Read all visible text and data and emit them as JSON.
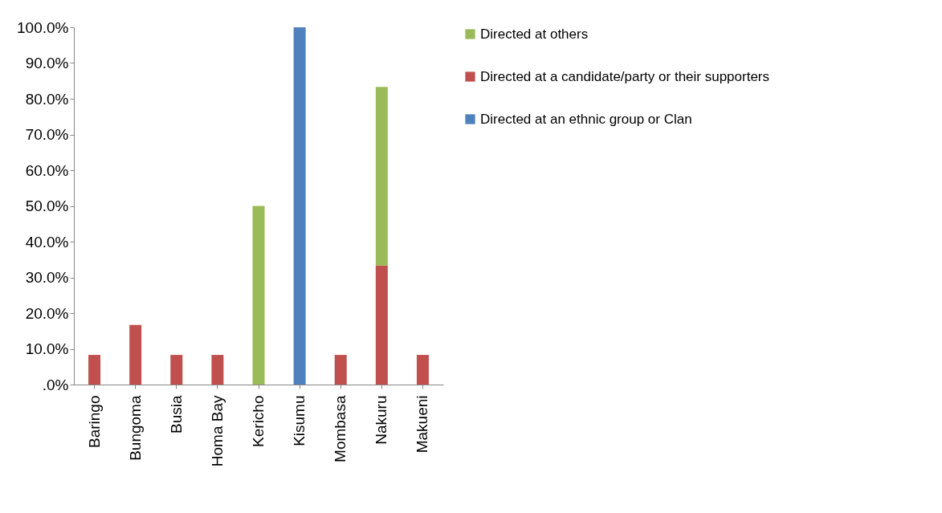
{
  "chart_data": {
    "type": "bar",
    "stacked": true,
    "categories": [
      "Baringo",
      "Bungoma",
      "Busia",
      "Homa Bay",
      "Kericho",
      "Kisumu",
      "Mombasa",
      "Nakuru",
      "Makueni"
    ],
    "series": [
      {
        "name": "Directed at an ethnic group or Clan",
        "color": "#4f81bd",
        "values": [
          null,
          null,
          null,
          null,
          null,
          100,
          null,
          null,
          null
        ]
      },
      {
        "name": "Directed at a candidate/party or their supporters",
        "color": "#c0504d",
        "values": [
          8.3,
          16.7,
          8.3,
          8.3,
          null,
          null,
          8.3,
          33.3,
          8.3
        ]
      },
      {
        "name": "Directed at others",
        "color": "#9bbb59",
        "values": [
          null,
          null,
          null,
          null,
          50,
          null,
          null,
          50,
          null
        ]
      }
    ],
    "ylim": [
      0,
      100
    ],
    "yticks": [
      {
        "value": 0,
        "label": ".0%"
      },
      {
        "value": 10,
        "label": "10.0%"
      },
      {
        "value": 20,
        "label": "20.0%"
      },
      {
        "value": 30,
        "label": "30.0%"
      },
      {
        "value": 40,
        "label": "40.0%"
      },
      {
        "value": 50,
        "label": "50.0%"
      },
      {
        "value": 60,
        "label": "60.0%"
      },
      {
        "value": 70,
        "label": "70.0%"
      },
      {
        "value": 80,
        "label": "80.0%"
      },
      {
        "value": 90,
        "label": "90.0%"
      },
      {
        "value": 100,
        "label": "100.0%"
      }
    ],
    "legend": "right"
  }
}
